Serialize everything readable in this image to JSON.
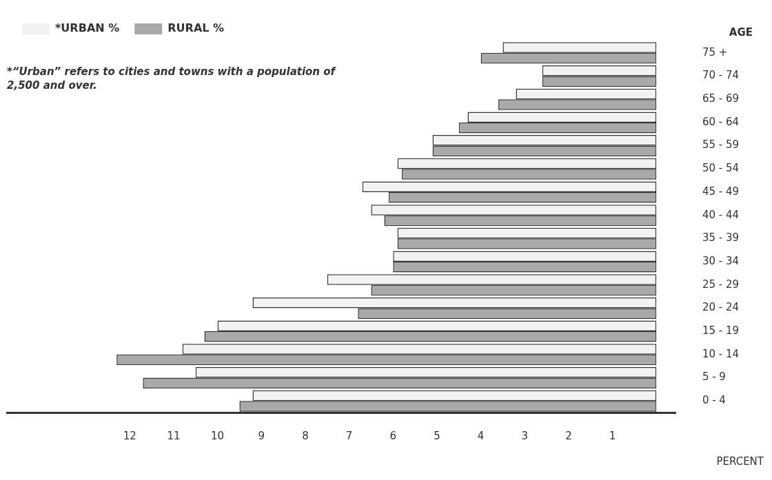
{
  "chart_data": {
    "type": "bar",
    "orientation": "horizontal",
    "categories": [
      "75 +",
      "70 - 74",
      "65 - 69",
      "60 - 64",
      "55 - 59",
      "50 - 54",
      "45 - 49",
      "40 - 44",
      "35 - 39",
      "30 - 34",
      "25 - 29",
      "20 - 24",
      "15 - 19",
      "10 - 14",
      "5 - 9",
      "0 - 4"
    ],
    "series": [
      {
        "name": "*URBAN %",
        "color": "#f2f2f2",
        "values": [
          3.5,
          2.6,
          3.2,
          4.3,
          5.1,
          5.9,
          6.7,
          6.5,
          5.9,
          6.0,
          7.5,
          9.2,
          10.0,
          10.8,
          10.5,
          9.2
        ]
      },
      {
        "name": "RURAL %",
        "color": "#a9a9a9",
        "values": [
          4.0,
          2.6,
          3.6,
          4.5,
          5.1,
          5.8,
          6.1,
          6.2,
          5.9,
          6.0,
          6.5,
          6.8,
          10.3,
          12.3,
          11.7,
          9.5
        ]
      }
    ],
    "xlim": [
      14.8,
      -0.45
    ],
    "xticks": [
      1,
      2,
      3,
      4,
      5,
      6,
      7,
      8,
      9,
      10,
      11,
      12
    ],
    "xlabel": "PERCENT",
    "ylabel": "AGE",
    "grid": false,
    "legend": "top left",
    "annotations": [
      "*“Urban” refers to cities and towns with a population of 2,500 and over."
    ]
  }
}
